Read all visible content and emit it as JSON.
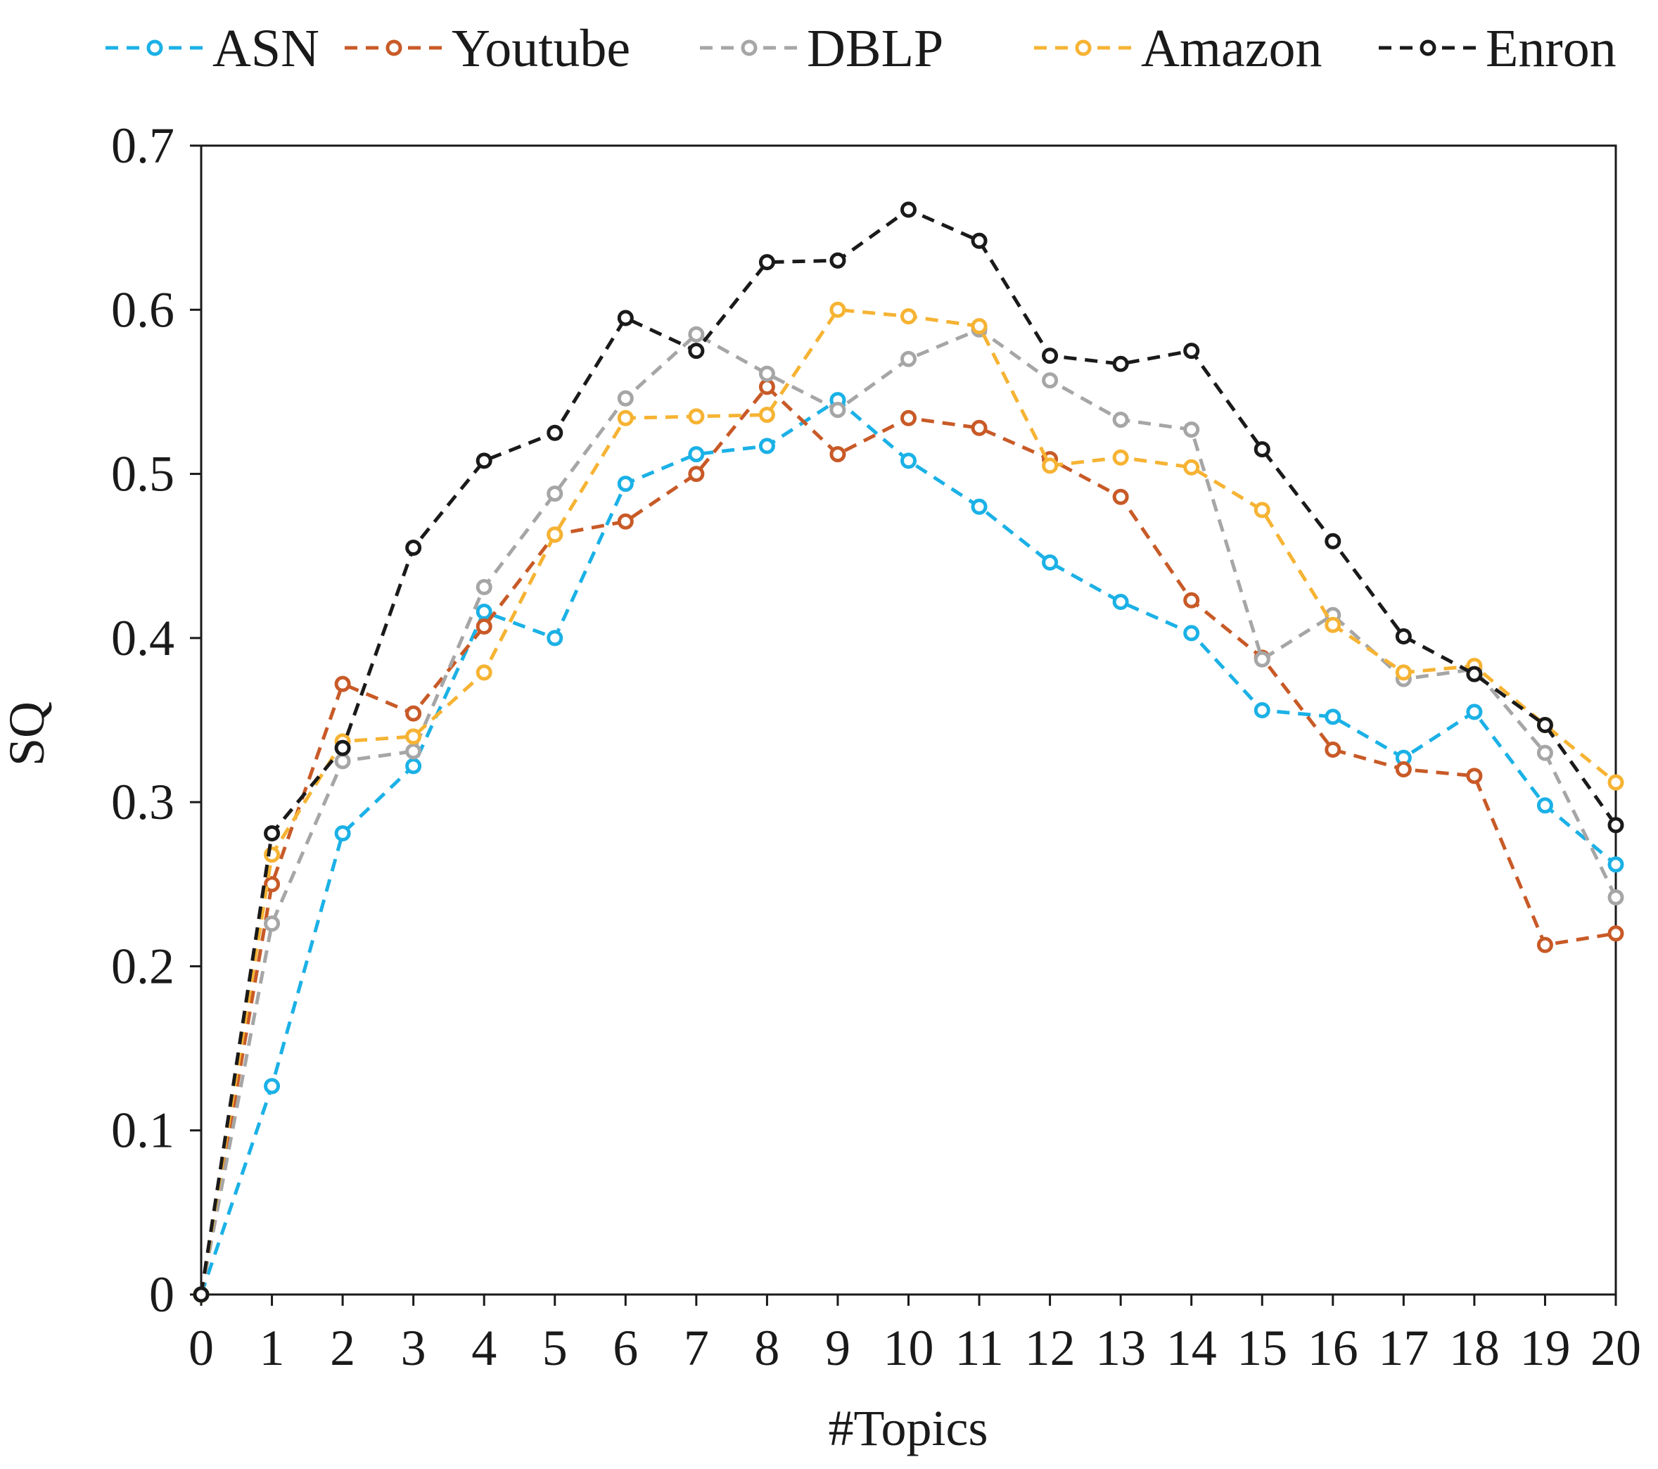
{
  "chart_data": {
    "type": "line",
    "title": "",
    "xlabel": "#Topics",
    "ylabel": "SQ",
    "x": [
      0,
      1,
      2,
      3,
      4,
      5,
      6,
      7,
      8,
      9,
      10,
      11,
      12,
      13,
      14,
      15,
      16,
      17,
      18,
      19,
      20
    ],
    "xlim": [
      0,
      20
    ],
    "ylim": [
      0,
      0.7
    ],
    "yticks": [
      0,
      0.1,
      0.2,
      0.3,
      0.4,
      0.5,
      0.6,
      0.7
    ],
    "ytick_labels": [
      "0",
      "0.1",
      "0.2",
      "0.3",
      "0.4",
      "0.5",
      "0.6",
      "0.7"
    ],
    "xtick_labels": [
      "0",
      "1",
      "2",
      "3",
      "4",
      "5",
      "6",
      "7",
      "8",
      "9",
      "10",
      "11",
      "12",
      "13",
      "14",
      "15",
      "16",
      "17",
      "18",
      "19",
      "20"
    ],
    "grid": false,
    "legend_position": "top",
    "series": [
      {
        "name": "ASN",
        "color": "#1bb1e6",
        "line_style": "dashed",
        "marker": "open-circle",
        "values": [
          0,
          0.127,
          0.281,
          0.322,
          0.416,
          0.4,
          0.494,
          0.512,
          0.517,
          0.545,
          0.508,
          0.48,
          0.446,
          0.422,
          0.403,
          0.356,
          0.352,
          0.327,
          0.355,
          0.298,
          0.262
        ]
      },
      {
        "name": "Youtube",
        "color": "#c85a27",
        "line_style": "dashed",
        "marker": "open-circle",
        "values": [
          0,
          0.25,
          0.372,
          0.354,
          0.407,
          0.463,
          0.471,
          0.5,
          0.553,
          0.512,
          0.534,
          0.528,
          0.509,
          0.486,
          0.423,
          0.388,
          0.332,
          0.32,
          0.316,
          0.213,
          0.22
        ]
      },
      {
        "name": "DBLP",
        "color": "#a6a6a6",
        "line_style": "dashed",
        "marker": "open-circle",
        "values": [
          0,
          0.226,
          0.325,
          0.331,
          0.431,
          0.488,
          0.546,
          0.585,
          0.561,
          0.539,
          0.57,
          0.588,
          0.557,
          0.533,
          0.527,
          0.387,
          0.414,
          0.375,
          0.381,
          0.33,
          0.242
        ]
      },
      {
        "name": "Amazon",
        "color": "#f6b333",
        "line_style": "dashed",
        "marker": "open-circle",
        "values": [
          0,
          0.268,
          0.337,
          0.34,
          0.379,
          0.463,
          0.534,
          0.535,
          0.536,
          0.6,
          0.596,
          0.59,
          0.505,
          0.51,
          0.504,
          0.478,
          0.408,
          0.379,
          0.383,
          0.347,
          0.312
        ]
      },
      {
        "name": "Enron",
        "color": "#1a1a1a",
        "line_style": "dashed",
        "marker": "open-circle",
        "values": [
          0,
          0.281,
          0.333,
          0.455,
          0.508,
          0.525,
          0.595,
          0.575,
          0.629,
          0.63,
          0.661,
          0.642,
          0.572,
          0.567,
          0.575,
          0.515,
          0.459,
          0.401,
          0.378,
          0.347,
          0.286
        ]
      }
    ]
  }
}
